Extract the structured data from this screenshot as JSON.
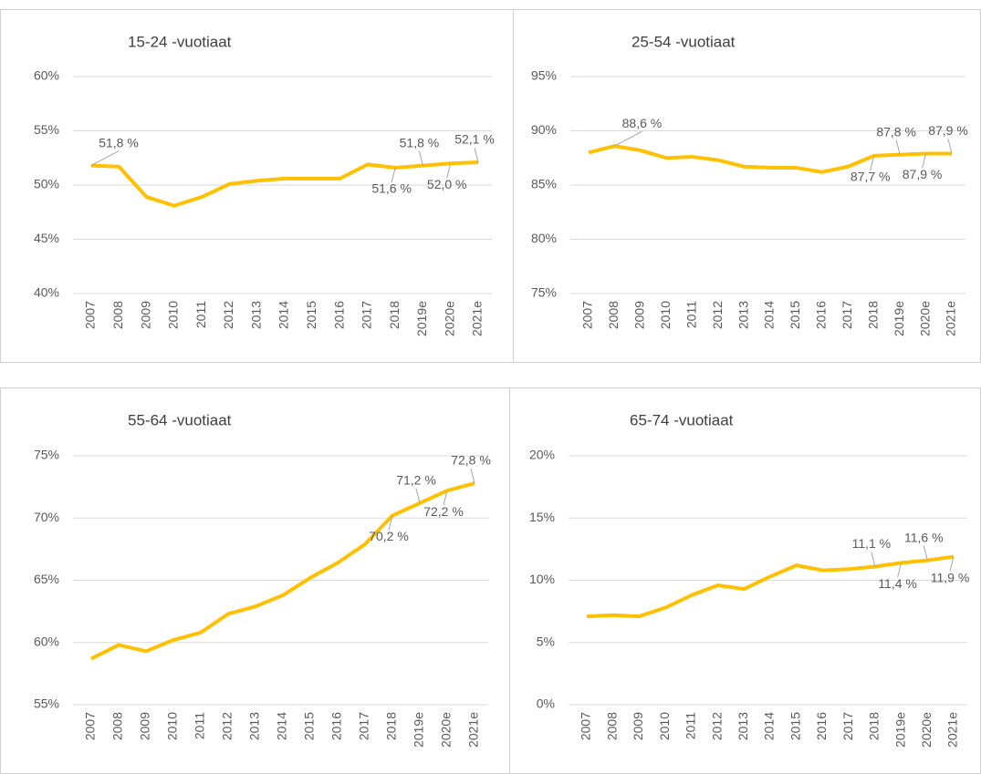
{
  "chart_data": [
    {
      "type": "line",
      "title": "15-24 -vuotiaat",
      "categories": [
        "2007",
        "2008",
        "2009",
        "2010",
        "2011",
        "2012",
        "2013",
        "2014",
        "2015",
        "2016",
        "2017",
        "2018",
        "2019e",
        "2020e",
        "2021e"
      ],
      "values": [
        51.8,
        51.7,
        48.9,
        48.1,
        48.9,
        50.1,
        50.4,
        50.6,
        50.6,
        50.6,
        51.9,
        51.6,
        51.8,
        52.0,
        52.1
      ],
      "value_labels": [
        "51,8 %",
        null,
        null,
        null,
        null,
        null,
        null,
        null,
        null,
        null,
        null,
        "51,6 %",
        "51,8 %",
        "52,0 %",
        "52,1 %"
      ],
      "color": "#ffc000",
      "ylim": [
        40,
        60
      ],
      "yticks": [
        {
          "value": 40,
          "label": "40%"
        },
        {
          "value": 45,
          "label": "45%"
        },
        {
          "value": 50,
          "label": "50%"
        },
        {
          "value": 55,
          "label": "55%"
        },
        {
          "value": 60,
          "label": "60%"
        }
      ],
      "grid": true
    },
    {
      "type": "line",
      "title": "25-54 -vuotiaat",
      "categories": [
        "2007",
        "2008",
        "2009",
        "2010",
        "2011",
        "2012",
        "2013",
        "2014",
        "2015",
        "2016",
        "2017",
        "2018",
        "2019e",
        "2020e",
        "2021e"
      ],
      "values": [
        88.0,
        88.6,
        88.2,
        87.5,
        87.6,
        87.3,
        86.7,
        86.6,
        86.6,
        86.2,
        86.7,
        87.7,
        87.8,
        87.9,
        87.9
      ],
      "value_labels": [
        null,
        "88,6 %",
        null,
        null,
        null,
        null,
        null,
        null,
        null,
        null,
        null,
        "87,7 %",
        "87,8 %",
        "87,9 %",
        "87,9 %"
      ],
      "color": "#ffc000",
      "ylim": [
        75,
        95
      ],
      "yticks": [
        {
          "value": 75,
          "label": "75%"
        },
        {
          "value": 80,
          "label": "80%"
        },
        {
          "value": 85,
          "label": "85%"
        },
        {
          "value": 90,
          "label": "90%"
        },
        {
          "value": 95,
          "label": "95%"
        }
      ],
      "grid": true
    },
    {
      "type": "line",
      "title": "55-64 -vuotiaat",
      "categories": [
        "2007",
        "2008",
        "2009",
        "2010",
        "2011",
        "2012",
        "2013",
        "2014",
        "2015",
        "2016",
        "2017",
        "2018",
        "2019e",
        "2020e",
        "2021e"
      ],
      "values": [
        58.7,
        59.8,
        59.3,
        60.2,
        60.8,
        62.3,
        62.9,
        63.8,
        65.2,
        66.4,
        67.9,
        70.2,
        71.2,
        72.2,
        72.8
      ],
      "value_labels": [
        null,
        null,
        null,
        null,
        null,
        null,
        null,
        null,
        null,
        null,
        null,
        "70,2 %",
        "71,2 %",
        "72,2 %",
        "72,8 %"
      ],
      "color": "#ffc000",
      "ylim": [
        55,
        75
      ],
      "yticks": [
        {
          "value": 55,
          "label": "55%"
        },
        {
          "value": 60,
          "label": "60%"
        },
        {
          "value": 65,
          "label": "65%"
        },
        {
          "value": 70,
          "label": "70%"
        },
        {
          "value": 75,
          "label": "75%"
        }
      ],
      "grid": true
    },
    {
      "type": "line",
      "title": "65-74 -vuotiaat",
      "categories": [
        "2007",
        "2008",
        "2009",
        "2010",
        "2011",
        "2012",
        "2013",
        "2014",
        "2015",
        "2016",
        "2017",
        "2018",
        "2019e",
        "2020e",
        "2021e"
      ],
      "values": [
        7.1,
        7.2,
        7.1,
        7.8,
        8.8,
        9.6,
        9.3,
        10.3,
        11.2,
        10.8,
        10.9,
        11.1,
        11.4,
        11.6,
        11.9
      ],
      "value_labels": [
        null,
        null,
        null,
        null,
        null,
        null,
        null,
        null,
        null,
        null,
        null,
        "11,1 %",
        "11,4 %",
        "11,6 %",
        "11,9 %"
      ],
      "color": "#ffc000",
      "ylim": [
        0,
        20
      ],
      "yticks": [
        {
          "value": 0,
          "label": "0%"
        },
        {
          "value": 5,
          "label": "5%"
        },
        {
          "value": 10,
          "label": "10%"
        },
        {
          "value": 15,
          "label": "15%"
        },
        {
          "value": 20,
          "label": "20%"
        }
      ],
      "grid": true
    }
  ]
}
